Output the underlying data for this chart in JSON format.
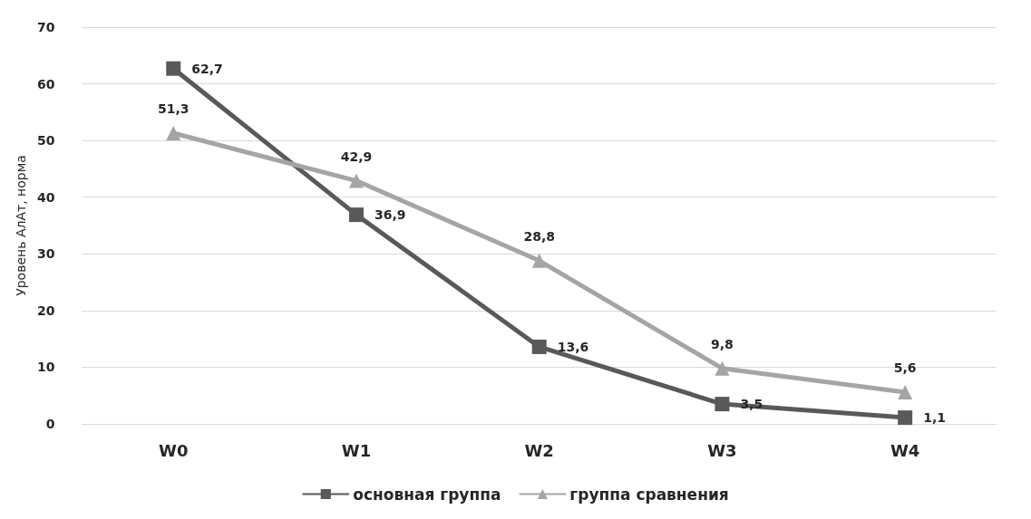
{
  "chart_data": {
    "type": "line",
    "ylabel": "Уровень АлАт, норма",
    "categories": [
      "W0",
      "W1",
      "W2",
      "W3",
      "W4"
    ],
    "series": [
      {
        "name": "основная группа",
        "color": "#595959",
        "values": [
          62.7,
          36.9,
          13.6,
          3.5,
          1.1
        ],
        "value_labels": [
          "62,7",
          "36,9",
          "13,6",
          "3,5",
          "1,1"
        ],
        "marker": "square"
      },
      {
        "name": "группа сравнения",
        "color": "#a5a5a5",
        "values": [
          51.3,
          42.9,
          28.8,
          9.8,
          5.6
        ],
        "value_labels": [
          "51,3",
          "42,9",
          "28,8",
          "9,8",
          "5,6"
        ],
        "marker": "triangle"
      }
    ],
    "ylim": [
      0,
      70
    ],
    "yticks": [
      0,
      10,
      20,
      30,
      40,
      50,
      60,
      70
    ],
    "grid": "y",
    "legend": "bottom",
    "line_style": "solid"
  }
}
